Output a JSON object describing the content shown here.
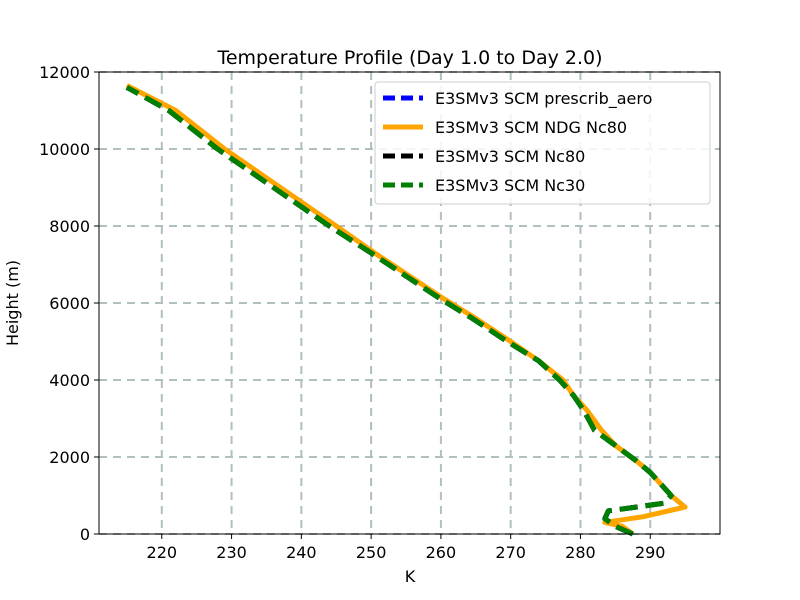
{
  "chart_data": {
    "type": "line",
    "title": "Temperature Profile (Day 1.0 to Day 2.0)",
    "xlabel": "K",
    "ylabel": "Height (m)",
    "xlim": [
      211,
      300
    ],
    "ylim": [
      0,
      12000
    ],
    "xticks": [
      220,
      230,
      240,
      250,
      260,
      270,
      280,
      290
    ],
    "yticks": [
      0,
      2000,
      4000,
      6000,
      8000,
      10000,
      12000
    ],
    "grid": true,
    "legend_position": "top-right",
    "series": [
      {
        "name": "E3SMv3 SCM prescrib_aero",
        "color": "#0000ff",
        "dash": "dashed",
        "points": [
          [
            287.5,
            0
          ],
          [
            285,
            200
          ],
          [
            283.5,
            400
          ],
          [
            284,
            600
          ],
          [
            288,
            700
          ],
          [
            292,
            800
          ],
          [
            293,
            1000
          ],
          [
            292,
            1200
          ],
          [
            290,
            1600
          ],
          [
            288,
            1900
          ],
          [
            285,
            2300
          ],
          [
            282,
            2700
          ],
          [
            280.5,
            3200
          ],
          [
            279,
            3600
          ],
          [
            277,
            4000
          ],
          [
            274,
            4500
          ],
          [
            269.5,
            5000
          ],
          [
            264.5,
            5600
          ],
          [
            260,
            6100
          ],
          [
            255,
            6700
          ],
          [
            250,
            7300
          ],
          [
            244,
            8000
          ],
          [
            236,
            9000
          ],
          [
            228,
            10000
          ],
          [
            221,
            11000
          ],
          [
            215,
            11600
          ]
        ]
      },
      {
        "name": "E3SMv3 SCM NDG Nc80",
        "color": "#ffa500",
        "dash": "solid",
        "points": [
          [
            287.5,
            0
          ],
          [
            286,
            200
          ],
          [
            283.5,
            300
          ],
          [
            289,
            450
          ],
          [
            295,
            700
          ],
          [
            293,
            1000
          ],
          [
            292,
            1200
          ],
          [
            290,
            1600
          ],
          [
            288,
            1900
          ],
          [
            285,
            2300
          ],
          [
            283,
            2700
          ],
          [
            281,
            3200
          ],
          [
            279,
            3600
          ],
          [
            277.5,
            4000
          ],
          [
            274,
            4500
          ],
          [
            270,
            5000
          ],
          [
            265,
            5600
          ],
          [
            260.5,
            6100
          ],
          [
            255.5,
            6700
          ],
          [
            250.5,
            7300
          ],
          [
            245,
            8000
          ],
          [
            237,
            9000
          ],
          [
            229,
            10000
          ],
          [
            222,
            11000
          ],
          [
            215,
            11650
          ]
        ]
      },
      {
        "name": "E3SMv3 SCM Nc80",
        "color": "#000000",
        "dash": "dashed",
        "points": [
          [
            287.5,
            0
          ],
          [
            285,
            200
          ],
          [
            283.5,
            400
          ],
          [
            284,
            600
          ],
          [
            288,
            700
          ],
          [
            292,
            800
          ],
          [
            293,
            1000
          ],
          [
            292,
            1200
          ],
          [
            290,
            1600
          ],
          [
            288,
            1900
          ],
          [
            285,
            2300
          ],
          [
            282,
            2700
          ],
          [
            280.5,
            3200
          ],
          [
            279,
            3600
          ],
          [
            277,
            4000
          ],
          [
            274,
            4500
          ],
          [
            269.5,
            5000
          ],
          [
            264.5,
            5600
          ],
          [
            260,
            6100
          ],
          [
            255,
            6700
          ],
          [
            250,
            7300
          ],
          [
            244,
            8000
          ],
          [
            236,
            9000
          ],
          [
            228,
            10000
          ],
          [
            221,
            11000
          ],
          [
            215,
            11600
          ]
        ]
      },
      {
        "name": "E3SMv3 SCM Nc30",
        "color": "#008000",
        "dash": "dashed",
        "points": [
          [
            287.5,
            0
          ],
          [
            285,
            200
          ],
          [
            283.5,
            400
          ],
          [
            284,
            600
          ],
          [
            288,
            700
          ],
          [
            292,
            800
          ],
          [
            293,
            1000
          ],
          [
            292,
            1200
          ],
          [
            290,
            1600
          ],
          [
            288,
            1900
          ],
          [
            285,
            2300
          ],
          [
            282,
            2700
          ],
          [
            280.5,
            3200
          ],
          [
            279,
            3600
          ],
          [
            277,
            4000
          ],
          [
            274,
            4500
          ],
          [
            269.5,
            5000
          ],
          [
            264.5,
            5600
          ],
          [
            260,
            6100
          ],
          [
            255,
            6700
          ],
          [
            250,
            7300
          ],
          [
            244,
            8000
          ],
          [
            236,
            9000
          ],
          [
            228,
            10000
          ],
          [
            221,
            11000
          ],
          [
            215,
            11600
          ]
        ]
      }
    ]
  }
}
